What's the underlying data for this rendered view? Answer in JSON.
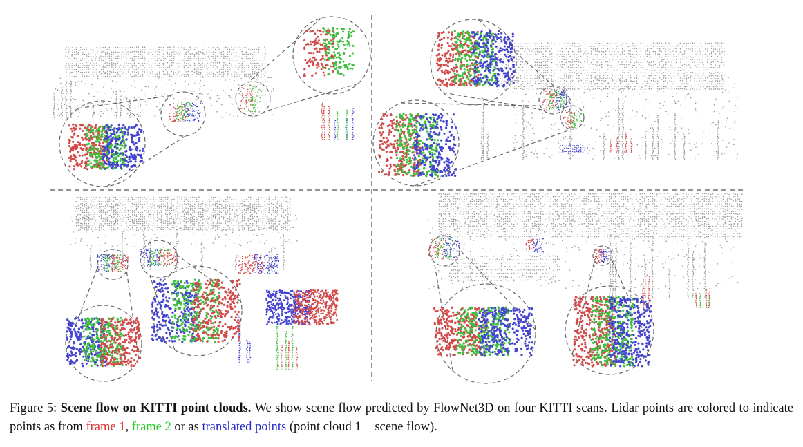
{
  "figure": {
    "colors": {
      "frame1": "#d24a4a",
      "frame2": "#3fbf3f",
      "translated": "#4444d0",
      "background_points": "#9a9a9a"
    }
  },
  "caption": {
    "prefix": "Figure 5: ",
    "title": "Scene flow on KITTI point clouds.",
    "text1": " We show scene flow predicted by FlowNet3D on four KITTI scans. Lidar points are colored to indicate points as from ",
    "frame1": "frame 1",
    "sep1": ", ",
    "frame2": "frame 2",
    "sep2": " or as ",
    "translated": "translated points",
    "text2": " (point cloud 1 + scene flow)."
  }
}
